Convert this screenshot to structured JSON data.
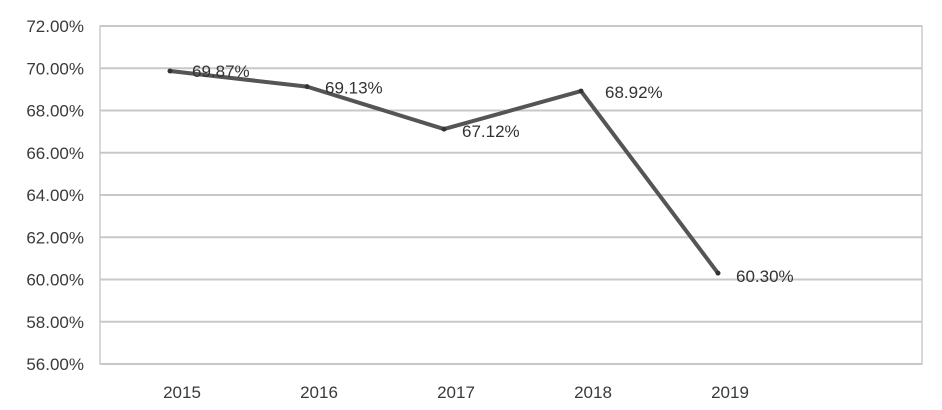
{
  "chart_data": {
    "type": "line",
    "title": "",
    "xlabel": "",
    "ylabel": "",
    "categories": [
      "2015",
      "2016",
      "2017",
      "2018",
      "2019"
    ],
    "series": [
      {
        "name": "",
        "values": [
          69.87,
          69.13,
          67.12,
          68.92,
          60.3
        ],
        "labels": [
          "69.87%",
          "69.13%",
          "67.12%",
          "68.92%",
          "60.30%"
        ]
      }
    ],
    "ylim": [
      56,
      72
    ],
    "y_ticks": [
      56,
      58,
      60,
      62,
      64,
      66,
      68,
      70,
      72
    ],
    "y_tick_labels": [
      "56.00%",
      "58.00%",
      "60.00%",
      "62.00%",
      "64.00%",
      "66.00%",
      "68.00%",
      "70.00%",
      "72.00%"
    ],
    "grid": true,
    "legend": "none",
    "colors": {
      "line": "#555555",
      "grid": "#c8c8c8",
      "frame": "#b0b0b0"
    }
  }
}
